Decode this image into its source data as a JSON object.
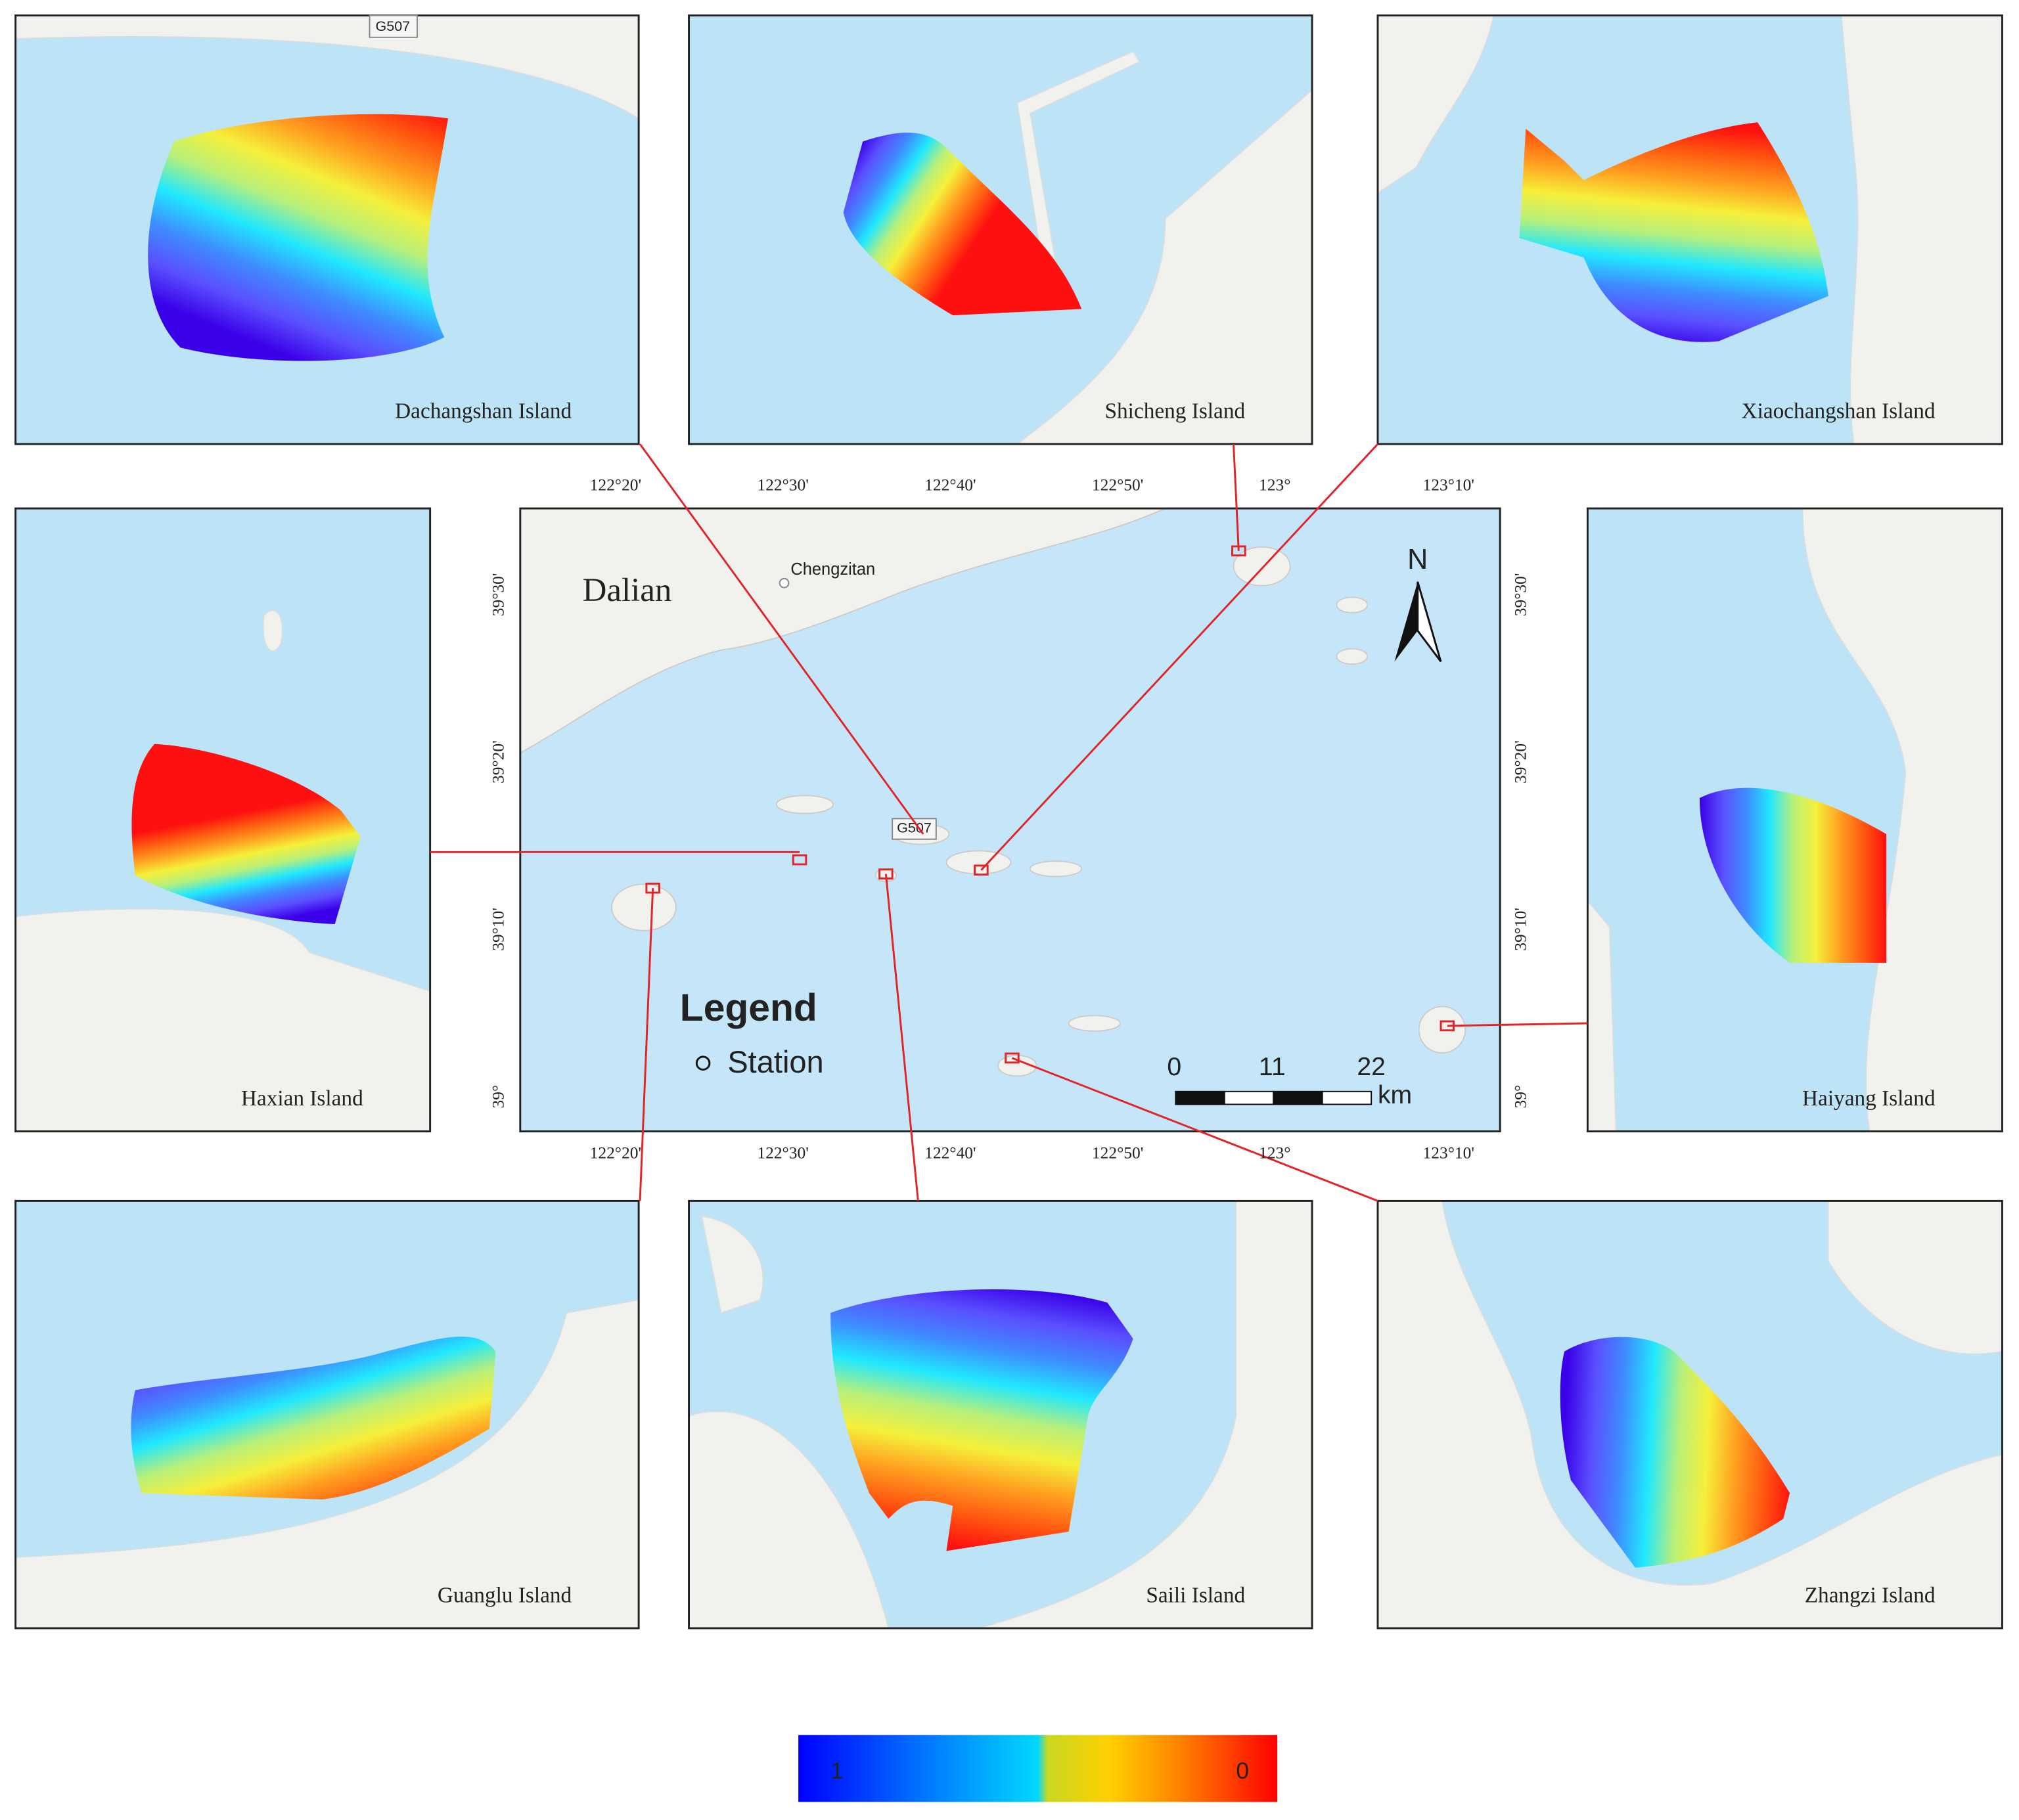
{
  "panels": [
    {
      "label": "Dachangshan Island",
      "road": "G507"
    },
    {
      "label": "Shicheng Island"
    },
    {
      "label": "Xiaochangshan Island"
    },
    {
      "label": "Haxian Island"
    },
    {
      "label": "Haiyang Island"
    },
    {
      "label": "Guanglu Island"
    },
    {
      "label": "Saili Island"
    },
    {
      "label": "Zhangzi Island"
    }
  ],
  "main_map": {
    "city": "Dalian",
    "town": "Chengzitan",
    "road": "G507",
    "north": "N",
    "lon_ticks": [
      "122°20'",
      "122°30'",
      "122°40'",
      "122°50'",
      "123°",
      "123°10'"
    ],
    "lat_ticks": [
      "39°30'",
      "39°20'",
      "39°10'",
      "39°"
    ],
    "legend": {
      "title": "Legend",
      "item": "Station"
    },
    "scale_bar": {
      "ticks": [
        "0",
        "11",
        "22"
      ],
      "unit": "km"
    }
  },
  "colorbar": {
    "low_label": "1",
    "high_label": "0"
  }
}
